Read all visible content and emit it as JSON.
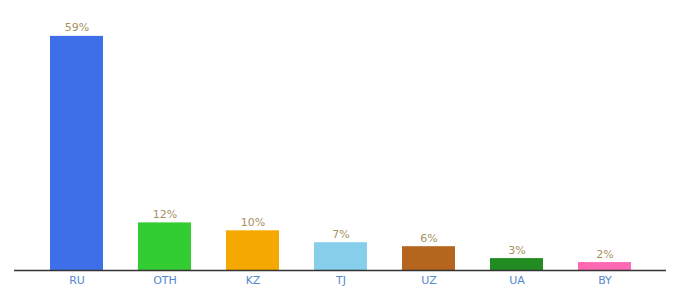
{
  "chart_data": {
    "type": "bar",
    "categories": [
      "RU",
      "OTH",
      "KZ",
      "TJ",
      "UZ",
      "UA",
      "BY"
    ],
    "values": [
      59,
      12,
      10,
      7,
      6,
      3,
      2
    ],
    "value_labels": [
      "59%",
      "12%",
      "10%",
      "7%",
      "6%",
      "3%",
      "2%"
    ],
    "colors": [
      "#3d6fe8",
      "#33cc33",
      "#f5a800",
      "#87ceeb",
      "#b5651d",
      "#228b22",
      "#ff69b4"
    ],
    "ylim": [
      0,
      63
    ],
    "data_labels": true,
    "tick_labels": "x",
    "grid": false
  }
}
